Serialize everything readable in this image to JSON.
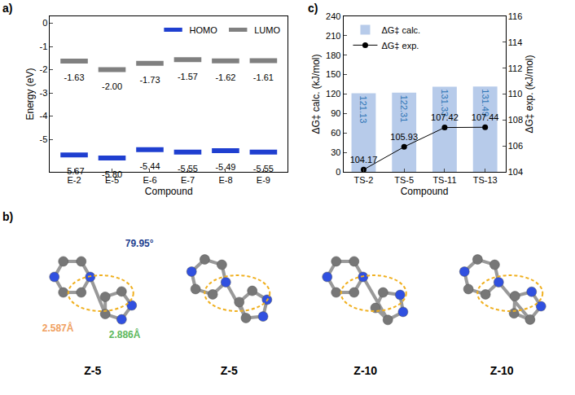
{
  "chart_data": [
    {
      "panel": "a)",
      "type": "scatter",
      "marker": "line",
      "x_label": "Compound",
      "y_label": "Energy (eV)",
      "categories": [
        "E-2",
        "E-5",
        "E-6",
        "E-7",
        "E-8",
        "E-9"
      ],
      "series": [
        {
          "name": "HOMO",
          "color": "#1f3fd0",
          "values": [
            -5.67,
            -5.8,
            -5.44,
            -5.55,
            -5.49,
            -5.55
          ],
          "value_labels": [
            "-5.67",
            "-5.80",
            "-5.44",
            "-5.55",
            "-5.49",
            "-5.55"
          ]
        },
        {
          "name": "LUMO",
          "color": "#808080",
          "values": [
            -1.63,
            -2.0,
            -1.73,
            -1.57,
            -1.62,
            -1.61
          ],
          "value_labels": [
            "-1.63",
            "-2.00",
            "-1.73",
            "-1.57",
            "-1.62",
            "-1.61"
          ]
        }
      ],
      "ylim": [
        -6.4,
        0.3
      ],
      "yticks": [
        -5,
        -4,
        -3,
        -2,
        -1,
        0
      ],
      "data_labels": true,
      "legend": "top right"
    },
    {
      "panel": "c)",
      "type": "bar",
      "x_label": "Compound",
      "y_label": "ΔG‡ calc. (kJ/mol)",
      "y2_label": "ΔG‡ exp. (kJ/mol)",
      "categories": [
        "TS-2",
        "TS-5",
        "TS-11",
        "TS-13"
      ],
      "series": [
        {
          "name": "ΔG‡ calc.",
          "type": "bar",
          "color": "#b7cbea",
          "values": [
            121.13,
            122.31,
            131.33,
            131.49
          ]
        },
        {
          "name": "ΔG‡ exp.",
          "type": "line",
          "axis": "y2",
          "color": "#000000",
          "marker": "circle",
          "values": [
            104.17,
            105.93,
            107.42,
            107.44
          ]
        }
      ],
      "ylim": [
        0,
        240
      ],
      "yticks": [
        0,
        30,
        60,
        90,
        120,
        150,
        180,
        210,
        240
      ],
      "y2lim": [
        104,
        116
      ],
      "y2ticks": [
        104,
        106,
        108,
        110,
        112,
        114,
        116
      ],
      "data_labels": true,
      "legend": "top left"
    }
  ],
  "structures": {
    "panel": "b)",
    "items": [
      {
        "label": "Z-5",
        "annotations": [
          {
            "text": "2.587Å",
            "color": "#f0a060"
          },
          {
            "text": "2.886Å",
            "color": "#5cb85c"
          },
          {
            "text": "79.95°",
            "color": "#1f3f8f"
          }
        ]
      },
      {
        "label": "Z-5"
      },
      {
        "label": "Z-10"
      },
      {
        "label": "Z-10"
      }
    ]
  }
}
